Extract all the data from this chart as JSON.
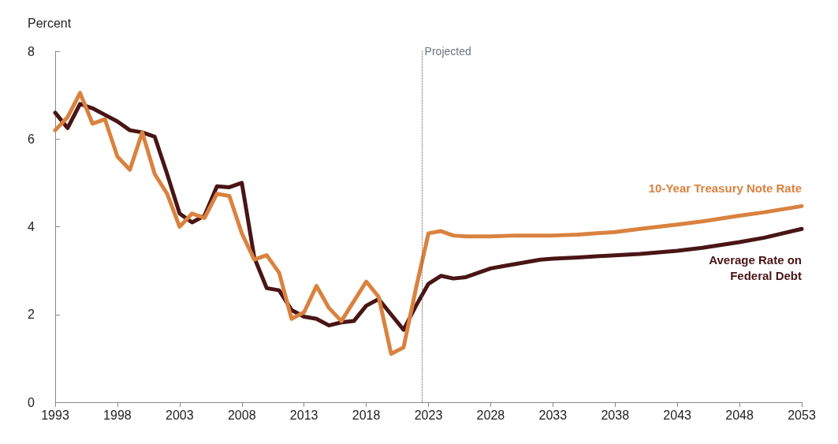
{
  "chart_data": {
    "type": "line",
    "ylabel": "Percent",
    "xlim": [
      1993,
      2053
    ],
    "xticks": [
      1993,
      1998,
      2003,
      2008,
      2013,
      2018,
      2023,
      2028,
      2033,
      2038,
      2043,
      2048,
      2053
    ],
    "ylim": [
      0,
      8
    ],
    "yticks": [
      0,
      2,
      4,
      6,
      8
    ],
    "grid": false,
    "legend": false,
    "line_style": "solid",
    "series": [
      {
        "name": "Average Rate on Federal Debt",
        "color": "#4a1515",
        "x": [
          1993,
          1994,
          1995,
          1996,
          1997,
          1998,
          1999,
          2000,
          2001,
          2002,
          2003,
          2004,
          2005,
          2006,
          2007,
          2008,
          2009,
          2010,
          2011,
          2012,
          2013,
          2014,
          2015,
          2016,
          2017,
          2018,
          2019,
          2020,
          2021,
          2022,
          2023,
          2024,
          2025,
          2026,
          2027,
          2028,
          2029,
          2030,
          2031,
          2032,
          2033,
          2035,
          2038,
          2040,
          2043,
          2045,
          2048,
          2050,
          2053
        ],
        "values": [
          6.6,
          6.25,
          6.8,
          6.7,
          6.55,
          6.4,
          6.2,
          6.15,
          6.05,
          5.2,
          4.3,
          4.1,
          4.25,
          4.92,
          4.9,
          5.0,
          3.3,
          2.6,
          2.55,
          2.1,
          1.95,
          1.9,
          1.75,
          1.82,
          1.85,
          2.2,
          2.35,
          2.0,
          1.65,
          2.2,
          2.7,
          2.88,
          2.82,
          2.85,
          2.95,
          3.05,
          3.1,
          3.15,
          3.2,
          3.25,
          3.27,
          3.3,
          3.35,
          3.38,
          3.45,
          3.52,
          3.65,
          3.75,
          3.95
        ]
      },
      {
        "name": "10-Year Treasury Note Rate",
        "color": "#d9823f",
        "x": [
          1993,
          1994,
          1995,
          1996,
          1997,
          1998,
          1999,
          2000,
          2001,
          2002,
          2003,
          2004,
          2005,
          2006,
          2007,
          2008,
          2009,
          2010,
          2011,
          2012,
          2013,
          2014,
          2015,
          2016,
          2017,
          2018,
          2019,
          2020,
          2021,
          2022,
          2023,
          2024,
          2025,
          2026,
          2028,
          2030,
          2033,
          2035,
          2038,
          2040,
          2043,
          2045,
          2048,
          2050,
          2053
        ],
        "values": [
          6.2,
          6.5,
          7.05,
          6.35,
          6.45,
          5.6,
          5.3,
          6.15,
          5.2,
          4.75,
          4.0,
          4.3,
          4.2,
          4.75,
          4.7,
          3.85,
          3.25,
          3.35,
          2.95,
          1.9,
          2.05,
          2.65,
          2.15,
          1.85,
          2.3,
          2.75,
          2.4,
          1.1,
          1.25,
          2.6,
          3.85,
          3.9,
          3.8,
          3.78,
          3.78,
          3.8,
          3.8,
          3.82,
          3.88,
          3.95,
          4.05,
          4.12,
          4.25,
          4.33,
          4.47
        ]
      }
    ],
    "ref_lines": [
      {
        "axis": "x",
        "value": 2022.5,
        "label": "Projected",
        "color": "#555555",
        "line_style": "dotted"
      }
    ]
  }
}
